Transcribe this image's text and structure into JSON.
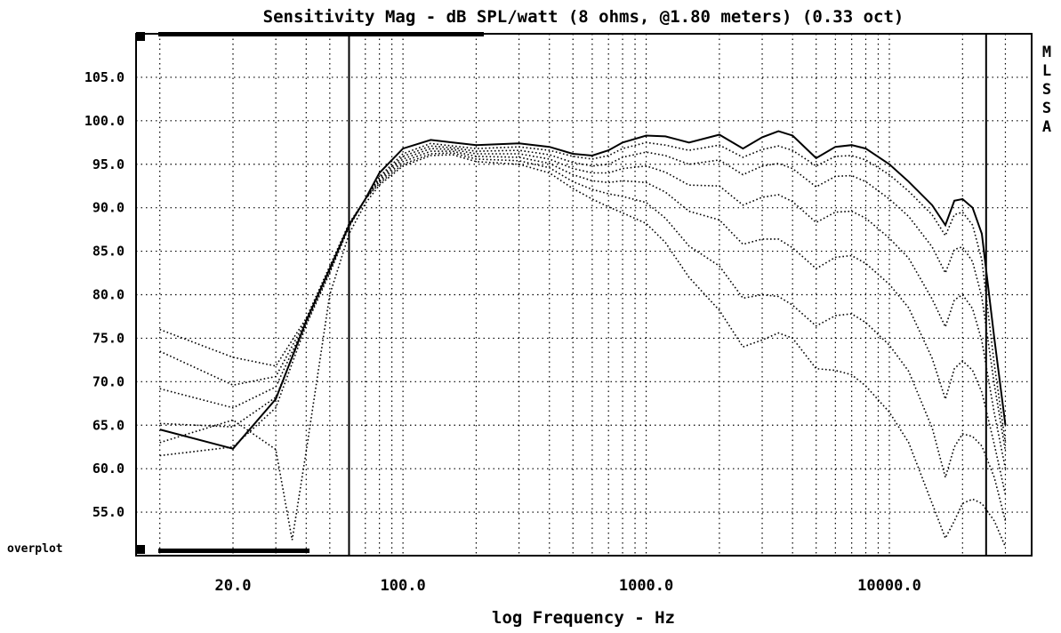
{
  "chart_data": {
    "type": "line",
    "title": "Sensitivity Mag - dB SPL/watt (8 ohms, @1.80 meters) (0.33 oct)",
    "xlabel": "log Frequency - Hz",
    "ylabel": "",
    "x_scale": "log",
    "xlim": [
      10,
      35000
    ],
    "ylim": [
      50,
      110
    ],
    "y_ticks": [
      "105.0",
      "100.0",
      "95.0",
      "90.0",
      "85.0",
      "80.0",
      "75.0",
      "70.0",
      "65.0",
      "60.0",
      "55.0"
    ],
    "x_ticks": [
      "20.0",
      "100.0",
      "1000.0",
      "10000.0"
    ],
    "grid": true,
    "side_label": [
      "M",
      "L",
      "S",
      "S",
      "A"
    ],
    "overplot_label": "overplot",
    "cursor_lines_hz": [
      60,
      25000
    ],
    "series": [
      {
        "style": "solid",
        "points": [
          [
            10,
            64.5
          ],
          [
            20,
            62.3
          ],
          [
            30,
            68
          ],
          [
            40,
            77
          ],
          [
            50,
            83
          ],
          [
            60,
            88
          ],
          [
            70,
            91
          ],
          [
            80,
            94
          ],
          [
            100,
            96.8
          ],
          [
            130,
            97.8
          ],
          [
            160,
            97.5
          ],
          [
            200,
            97.2
          ],
          [
            300,
            97.4
          ],
          [
            400,
            97
          ],
          [
            500,
            96.2
          ],
          [
            600,
            96
          ],
          [
            700,
            96.6
          ],
          [
            800,
            97.5
          ],
          [
            1000,
            98.3
          ],
          [
            1200,
            98.2
          ],
          [
            1500,
            97.5
          ],
          [
            2000,
            98.4
          ],
          [
            2500,
            96.8
          ],
          [
            3000,
            98.1
          ],
          [
            3500,
            98.8
          ],
          [
            4000,
            98.3
          ],
          [
            5000,
            95.7
          ],
          [
            6000,
            97
          ],
          [
            7000,
            97.2
          ],
          [
            8000,
            96.8
          ],
          [
            10000,
            95
          ],
          [
            12000,
            93
          ],
          [
            15000,
            90.3
          ],
          [
            17000,
            88
          ],
          [
            18500,
            90.8
          ],
          [
            20000,
            91
          ],
          [
            22000,
            90
          ],
          [
            24000,
            87
          ],
          [
            27000,
            75
          ],
          [
            30000,
            65
          ]
        ]
      },
      {
        "style": "dotted",
        "points": [
          [
            10,
            76
          ],
          [
            20,
            72.8
          ],
          [
            30,
            71.8
          ],
          [
            40,
            77.3
          ],
          [
            50,
            83.3
          ],
          [
            60,
            88.2
          ],
          [
            70,
            91
          ],
          [
            80,
            93.6
          ],
          [
            100,
            96.2
          ],
          [
            130,
            97.4
          ],
          [
            160,
            97.1
          ],
          [
            200,
            96.8
          ],
          [
            300,
            97
          ],
          [
            400,
            96.6
          ],
          [
            500,
            95.9
          ],
          [
            600,
            95.6
          ],
          [
            700,
            96
          ],
          [
            800,
            96.8
          ],
          [
            1000,
            97.5
          ],
          [
            1200,
            97.2
          ],
          [
            1500,
            96.6
          ],
          [
            2000,
            97.2
          ],
          [
            2500,
            95.8
          ],
          [
            3000,
            96.7
          ],
          [
            3500,
            97.1
          ],
          [
            4000,
            96.6
          ],
          [
            5000,
            94.8
          ],
          [
            6000,
            95.9
          ],
          [
            7000,
            96
          ],
          [
            8000,
            95.5
          ],
          [
            10000,
            93.8
          ],
          [
            12000,
            91.9
          ],
          [
            15000,
            89.2
          ],
          [
            17000,
            86.8
          ],
          [
            18500,
            89.2
          ],
          [
            20000,
            89.5
          ],
          [
            22000,
            88
          ],
          [
            24000,
            84
          ],
          [
            27000,
            72
          ],
          [
            30000,
            63
          ]
        ]
      },
      {
        "style": "dotted",
        "points": [
          [
            10,
            73.5
          ],
          [
            20,
            69.6
          ],
          [
            30,
            70.6
          ],
          [
            40,
            77.1
          ],
          [
            50,
            83.1
          ],
          [
            60,
            88.1
          ],
          [
            70,
            91
          ],
          [
            80,
            93.4
          ],
          [
            100,
            95.9
          ],
          [
            130,
            97.1
          ],
          [
            160,
            96.9
          ],
          [
            200,
            96.5
          ],
          [
            300,
            96.6
          ],
          [
            400,
            96.1
          ],
          [
            500,
            95.2
          ],
          [
            600,
            94.8
          ],
          [
            700,
            95
          ],
          [
            800,
            95.8
          ],
          [
            1000,
            96.4
          ],
          [
            1200,
            96
          ],
          [
            1500,
            95
          ],
          [
            2000,
            95.5
          ],
          [
            2500,
            93.8
          ],
          [
            3000,
            94.8
          ],
          [
            3500,
            95.1
          ],
          [
            4000,
            94.5
          ],
          [
            5000,
            92.4
          ],
          [
            6000,
            93.6
          ],
          [
            7000,
            93.7
          ],
          [
            8000,
            93
          ],
          [
            10000,
            91
          ],
          [
            12000,
            89
          ],
          [
            15000,
            85.5
          ],
          [
            17000,
            82.5
          ],
          [
            18500,
            85.2
          ],
          [
            20000,
            85.5
          ],
          [
            22000,
            83.8
          ],
          [
            24000,
            79.7
          ],
          [
            27000,
            69.7
          ],
          [
            30000,
            62
          ]
        ]
      },
      {
        "style": "dotted",
        "points": [
          [
            10,
            69.2
          ],
          [
            20,
            67
          ],
          [
            30,
            69.4
          ],
          [
            40,
            76.9
          ],
          [
            50,
            82.9
          ],
          [
            60,
            88
          ],
          [
            70,
            91
          ],
          [
            80,
            93.2
          ],
          [
            100,
            95.6
          ],
          [
            130,
            96.8
          ],
          [
            160,
            96.7
          ],
          [
            200,
            96.2
          ],
          [
            300,
            96.2
          ],
          [
            400,
            95.6
          ],
          [
            500,
            94.5
          ],
          [
            600,
            94
          ],
          [
            700,
            94
          ],
          [
            800,
            94.5
          ],
          [
            1000,
            94.8
          ],
          [
            1200,
            94.1
          ],
          [
            1500,
            92.6
          ],
          [
            2000,
            92.5
          ],
          [
            2500,
            90.3
          ],
          [
            3000,
            91.2
          ],
          [
            3500,
            91.5
          ],
          [
            4000,
            90.7
          ],
          [
            5000,
            88.3
          ],
          [
            6000,
            89.5
          ],
          [
            7000,
            89.6
          ],
          [
            8000,
            88.8
          ],
          [
            10000,
            86.5
          ],
          [
            12000,
            84.2
          ],
          [
            15000,
            79.5
          ],
          [
            17000,
            76.3
          ],
          [
            18500,
            79.4
          ],
          [
            20000,
            80
          ],
          [
            22000,
            78.4
          ],
          [
            24000,
            74.7
          ],
          [
            27000,
            66.4
          ],
          [
            30000,
            60
          ]
        ]
      },
      {
        "style": "dotted",
        "points": [
          [
            10,
            65.2
          ],
          [
            20,
            64.8
          ],
          [
            30,
            68.2
          ],
          [
            40,
            76.7
          ],
          [
            50,
            82.7
          ],
          [
            60,
            87.9
          ],
          [
            70,
            91
          ],
          [
            80,
            93
          ],
          [
            100,
            95.3
          ],
          [
            130,
            96.5
          ],
          [
            160,
            96.5
          ],
          [
            200,
            95.9
          ],
          [
            300,
            95.8
          ],
          [
            400,
            95.1
          ],
          [
            500,
            93.8
          ],
          [
            600,
            93.1
          ],
          [
            700,
            92.9
          ],
          [
            800,
            93.1
          ],
          [
            1000,
            92.9
          ],
          [
            1200,
            91.8
          ],
          [
            1500,
            89.6
          ],
          [
            2000,
            88.6
          ],
          [
            2500,
            85.8
          ],
          [
            3000,
            86.4
          ],
          [
            3500,
            86.4
          ],
          [
            4000,
            85.4
          ],
          [
            5000,
            83
          ],
          [
            6000,
            84.3
          ],
          [
            7000,
            84.5
          ],
          [
            8000,
            83.6
          ],
          [
            10000,
            81.2
          ],
          [
            12000,
            78.5
          ],
          [
            15000,
            72.7
          ],
          [
            17000,
            68
          ],
          [
            18500,
            71.5
          ],
          [
            20000,
            72.4
          ],
          [
            22000,
            71.3
          ],
          [
            24000,
            68.8
          ],
          [
            27000,
            62.8
          ],
          [
            30000,
            57
          ]
        ]
      },
      {
        "style": "dotted",
        "points": [
          [
            10,
            61.5
          ],
          [
            20,
            62.5
          ],
          [
            30,
            67
          ],
          [
            40,
            76.5
          ],
          [
            50,
            82.5
          ],
          [
            60,
            87.8
          ],
          [
            70,
            91
          ],
          [
            80,
            92.8
          ],
          [
            100,
            95
          ],
          [
            130,
            96.2
          ],
          [
            160,
            96.3
          ],
          [
            200,
            95.6
          ],
          [
            300,
            95.4
          ],
          [
            400,
            94.6
          ],
          [
            500,
            93
          ],
          [
            600,
            92.1
          ],
          [
            700,
            91.6
          ],
          [
            800,
            91.3
          ],
          [
            1000,
            90.6
          ],
          [
            1200,
            88.8
          ],
          [
            1500,
            85.6
          ],
          [
            2000,
            83.3
          ],
          [
            2500,
            79.6
          ],
          [
            3000,
            80
          ],
          [
            3500,
            79.8
          ],
          [
            4000,
            78.8
          ],
          [
            5000,
            76.4
          ],
          [
            6000,
            77.6
          ],
          [
            7000,
            77.8
          ],
          [
            8000,
            76.8
          ],
          [
            10000,
            74.2
          ],
          [
            12000,
            71.2
          ],
          [
            15000,
            64.7
          ],
          [
            17000,
            59
          ],
          [
            18500,
            62.5
          ],
          [
            20000,
            64
          ],
          [
            22000,
            63.7
          ],
          [
            24000,
            62.6
          ],
          [
            27000,
            59
          ],
          [
            30000,
            54
          ]
        ]
      },
      {
        "style": "dotted",
        "points": [
          [
            10,
            63
          ],
          [
            20,
            65.6
          ],
          [
            30,
            62.2
          ],
          [
            35,
            51.8
          ],
          [
            40,
            62
          ],
          [
            50,
            80
          ],
          [
            60,
            87
          ],
          [
            70,
            90.5
          ],
          [
            80,
            92.6
          ],
          [
            100,
            94.8
          ],
          [
            130,
            96
          ],
          [
            160,
            96.1
          ],
          [
            200,
            95.3
          ],
          [
            300,
            95
          ],
          [
            400,
            94
          ],
          [
            500,
            92.2
          ],
          [
            600,
            91
          ],
          [
            700,
            90.1
          ],
          [
            800,
            89.4
          ],
          [
            1000,
            88.2
          ],
          [
            1200,
            86
          ],
          [
            1500,
            82
          ],
          [
            2000,
            78.2
          ],
          [
            2500,
            74
          ],
          [
            3000,
            74.8
          ],
          [
            3500,
            75.6
          ],
          [
            4000,
            75
          ],
          [
            5000,
            71.5
          ],
          [
            6000,
            71.3
          ],
          [
            7000,
            70.8
          ],
          [
            8000,
            69.5
          ],
          [
            10000,
            66.5
          ],
          [
            12000,
            63
          ],
          [
            15000,
            56
          ],
          [
            17000,
            52
          ],
          [
            18500,
            54
          ],
          [
            20000,
            56
          ],
          [
            22000,
            56.5
          ],
          [
            24000,
            56
          ],
          [
            27000,
            54
          ],
          [
            30000,
            51
          ]
        ]
      }
    ]
  }
}
